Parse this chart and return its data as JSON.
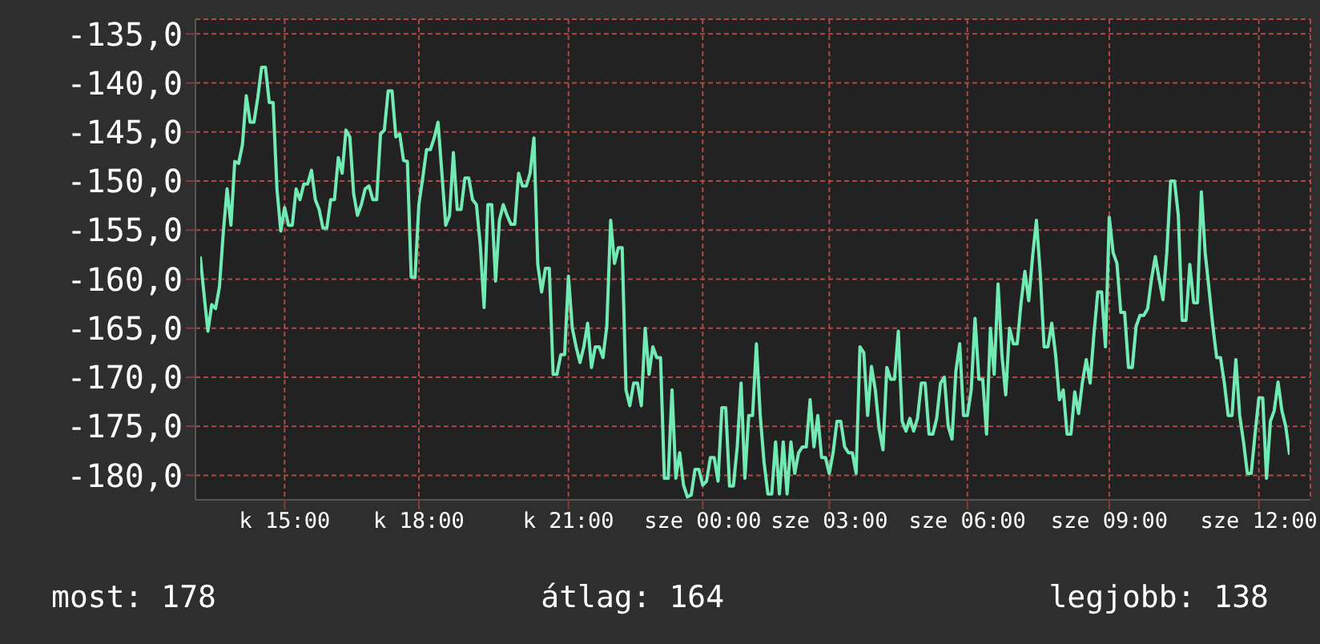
{
  "chart_data": {
    "type": "line",
    "categories": [
      null,
      null,
      null,
      null,
      null,
      null,
      null,
      null,
      null,
      null,
      null,
      null,
      null,
      null,
      null,
      null,
      null,
      null,
      null,
      null,
      null,
      null,
      "k 15:00",
      null,
      null,
      null,
      null,
      null,
      null,
      null,
      null,
      null,
      null,
      null,
      null,
      null,
      null,
      null,
      null,
      null,
      null,
      null,
      null,
      null,
      null,
      null,
      null,
      null,
      null,
      null,
      null,
      null,
      null,
      null,
      null,
      null,
      null,
      "k 18:00",
      null,
      null,
      null,
      null,
      null,
      null,
      null,
      null,
      null,
      null,
      null,
      null,
      null,
      null,
      null,
      null,
      null,
      null,
      null,
      null,
      null,
      null,
      null,
      null,
      null,
      null,
      null,
      null,
      null,
      null,
      null,
      null,
      null,
      null,
      null,
      null,
      null,
      null,
      "k 21:00",
      null,
      null,
      null,
      null,
      null,
      null,
      null,
      null,
      null,
      null,
      null,
      null,
      null,
      null,
      null,
      null,
      null,
      null,
      null,
      null,
      null,
      null,
      null,
      null,
      null,
      null,
      null,
      null,
      null,
      null,
      null,
      null,
      null,
      null,
      "sze 00:00",
      null,
      null,
      null,
      null,
      null,
      null,
      null,
      null,
      null,
      null,
      null,
      null,
      null,
      null,
      null,
      null,
      null,
      null,
      null,
      null,
      null,
      null,
      null,
      null,
      null,
      null,
      null,
      null,
      null,
      null,
      null,
      null,
      "sze 03:00",
      null,
      null,
      null,
      null,
      null,
      null,
      null,
      null,
      null,
      null,
      null,
      null,
      null,
      null,
      null,
      null,
      null,
      null,
      null,
      null,
      null,
      null,
      null,
      null,
      null,
      null,
      null,
      null,
      null,
      null,
      null,
      null,
      null,
      null,
      null,
      "sze 06:00",
      null,
      null,
      null,
      null,
      null,
      null,
      null,
      null,
      null,
      null,
      null,
      null,
      null,
      null,
      null,
      null,
      null,
      null,
      null,
      null,
      null,
      null,
      null,
      null,
      null,
      null,
      null,
      null,
      null,
      null,
      null,
      null,
      null,
      null,
      null,
      null,
      "sze 09:00",
      null,
      null,
      null,
      null,
      null,
      null,
      null,
      null,
      null,
      null,
      null,
      null,
      null,
      null,
      null,
      null,
      null,
      null,
      null,
      null,
      null,
      null,
      null,
      null,
      null,
      null,
      null,
      null,
      null,
      null,
      null,
      null,
      null,
      null,
      null,
      null,
      null,
      null,
      "sze 12:00",
      null,
      null,
      null,
      null,
      null,
      null,
      null,
      null
    ],
    "series": [
      {
        "color": "#72eab4",
        "values": [
          -157.7,
          -161.6,
          -165.3,
          -162.6,
          -163,
          -160.8,
          -155.3,
          -150.8,
          -154.5,
          -148,
          -148.2,
          -146.3,
          -141.3,
          -144,
          -144,
          -141.5,
          -138.4,
          -138.4,
          -142,
          -142,
          -150.8,
          -155.1,
          -152.7,
          -154.5,
          -154.5,
          -150.8,
          -151.9,
          -150.3,
          -150.3,
          -148.9,
          -151.9,
          -152.9,
          -154.8,
          -154.8,
          -151.9,
          -151.9,
          -147.6,
          -149.2,
          -144.8,
          -145.5,
          -151.3,
          -153.5,
          -152.4,
          -150.8,
          -150.5,
          -151.9,
          -151.9,
          -145.2,
          -144.8,
          -140.8,
          -140.8,
          -145.5,
          -145.2,
          -147.9,
          -148,
          -159.8,
          -159.8,
          -152.4,
          -149.7,
          -146.8,
          -146.8,
          -145.6,
          -144,
          -149.2,
          -154.5,
          -153.5,
          -147.1,
          -152.9,
          -152.9,
          -149.7,
          -149.7,
          -151.9,
          -152.4,
          -156.5,
          -162.9,
          -152.4,
          -152.4,
          -160.2,
          -154,
          -152.4,
          -153.5,
          -154.4,
          -154.4,
          -149.2,
          -150.5,
          -150.5,
          -149.2,
          -145.6,
          -158.5,
          -161.3,
          -158.9,
          -158.9,
          -169.7,
          -169.7,
          -167.7,
          -167.7,
          -159.7,
          -165,
          -166.9,
          -168.5,
          -166.9,
          -164.5,
          -169,
          -166.9,
          -166.9,
          -168,
          -164.8,
          -154,
          -158.4,
          -156.8,
          -156.8,
          -171.3,
          -172.9,
          -170.6,
          -170.6,
          -172.9,
          -165,
          -169.7,
          -166.9,
          -168,
          -168,
          -180.3,
          -180.3,
          -171.3,
          -180.3,
          -177.7,
          -181,
          -182.2,
          -182,
          -179.4,
          -179.4,
          -181,
          -180.6,
          -178.2,
          -178.2,
          -180.6,
          -173.1,
          -173.1,
          -181.1,
          -181.1,
          -177.1,
          -170.6,
          -180.3,
          -173.9,
          -173.9,
          -166.6,
          -173.9,
          -178.7,
          -181.9,
          -181.9,
          -176.6,
          -181.9,
          -176.6,
          -181.9,
          -176.6,
          -179.8,
          -177.7,
          -177.1,
          -177.1,
          -172.3,
          -177.1,
          -173.9,
          -178.2,
          -178.2,
          -179.8,
          -177.7,
          -174.5,
          -174.5,
          -177.1,
          -177.7,
          -177.7,
          -179.8,
          -166.9,
          -167.5,
          -173.9,
          -168.9,
          -171.3,
          -175.3,
          -177.4,
          -169,
          -170.2,
          -170.2,
          -165.3,
          -174.5,
          -175.5,
          -174.2,
          -175.5,
          -174.2,
          -170.6,
          -170.6,
          -175.8,
          -175.8,
          -174.2,
          -170.6,
          -170,
          -175,
          -176.3,
          -169.4,
          -166.6,
          -173.9,
          -173.9,
          -171.3,
          -164,
          -170.2,
          -170.2,
          -175.8,
          -165,
          -169.7,
          -160.5,
          -167.7,
          -171.8,
          -165,
          -166.6,
          -166.6,
          -162.4,
          -159.2,
          -162.2,
          -157.7,
          -154,
          -159.4,
          -166.9,
          -166.9,
          -164.5,
          -167.7,
          -172.3,
          -171.3,
          -175.8,
          -175.8,
          -171.5,
          -173.7,
          -170.5,
          -168.2,
          -170.6,
          -165.6,
          -161.3,
          -161.3,
          -166.9,
          -153.7,
          -157.3,
          -158.4,
          -163.4,
          -163.4,
          -169,
          -169,
          -164.8,
          -163.7,
          -163.7,
          -163,
          -160,
          -157.7,
          -160,
          -162.1,
          -157.3,
          -150,
          -150,
          -153.5,
          -164.2,
          -164.2,
          -158.5,
          -162.4,
          -162.4,
          -151.1,
          -157.3,
          -161,
          -164.8,
          -168,
          -168,
          -170.6,
          -173.9,
          -173.9,
          -168.2,
          -173.9,
          -176.6,
          -179.8,
          -179.8,
          -175.8,
          -172.1,
          -172.1,
          -180.3,
          -174.5,
          -173.4,
          -170.5,
          -173.4,
          -175,
          -177.9
        ]
      }
    ],
    "ylim": [
      -182.5,
      -133.5
    ],
    "yticks": [
      {
        "value": -135,
        "label": "-135,0"
      },
      {
        "value": -140,
        "label": "-140,0"
      },
      {
        "value": -145,
        "label": "-145,0"
      },
      {
        "value": -150,
        "label": "-150,0"
      },
      {
        "value": -155,
        "label": "-155,0"
      },
      {
        "value": -160,
        "label": "-160,0"
      },
      {
        "value": -165,
        "label": "-165,0"
      },
      {
        "value": -170,
        "label": "-170,0"
      },
      {
        "value": -175,
        "label": "-175,0"
      },
      {
        "value": -180,
        "label": "-180,0"
      }
    ],
    "grid": true,
    "marker": "none",
    "line_style": "solid",
    "legend": false,
    "annotations": [
      "most: 178",
      "átlag: 164",
      "legjobb: 138"
    ]
  }
}
